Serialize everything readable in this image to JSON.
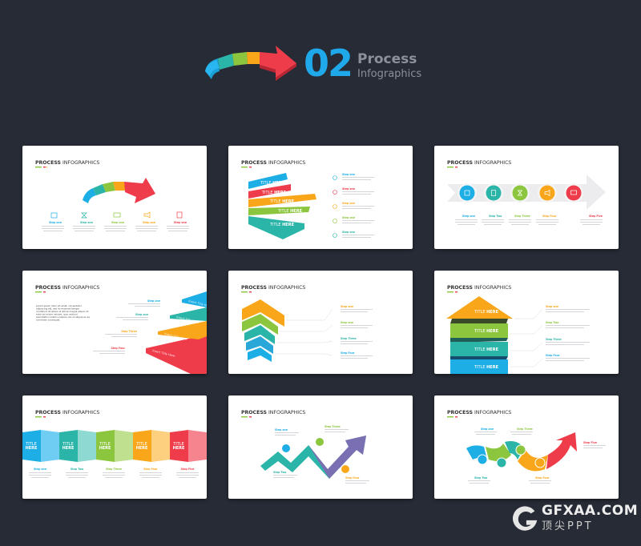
{
  "header": {
    "number": "02",
    "title": "Process",
    "subtitle": "Infographics"
  },
  "colors": {
    "background": "#272b35",
    "blue": "#1eaee6",
    "teal": "#2bb5a8",
    "green": "#8cc63e",
    "orange": "#f9a61a",
    "red": "#ee3c4b",
    "accent": "#1fa8ea"
  },
  "slide_title": {
    "bold": "PROCESS",
    "light": "INFOGRAPHICS"
  },
  "steps": [
    "Step one",
    "Step Two",
    "Step Three",
    "Step Four",
    "Step Five"
  ],
  "steps_lower": [
    "Step one",
    "Step one",
    "Step one",
    "Step one",
    "Step one"
  ],
  "title_here": {
    "light": "TITLE",
    "bold": "HERE"
  },
  "insert_title": "Insert Title Here",
  "paragraph": [
    "Lorem ipsum dolor sit amet, consectetur",
    "adipiscing elit, sed do eiusmod tempor",
    "incididunt ut labore et dolore magna aliqua. Ut",
    "enim ad minim veniam, quis nostrud",
    "exercitation ullamco laboris nisi ut aliquip ex ea",
    "commodo consequat."
  ],
  "watermark": {
    "brand": "GFXAA.COM",
    "sub": "顶尖PPT"
  }
}
